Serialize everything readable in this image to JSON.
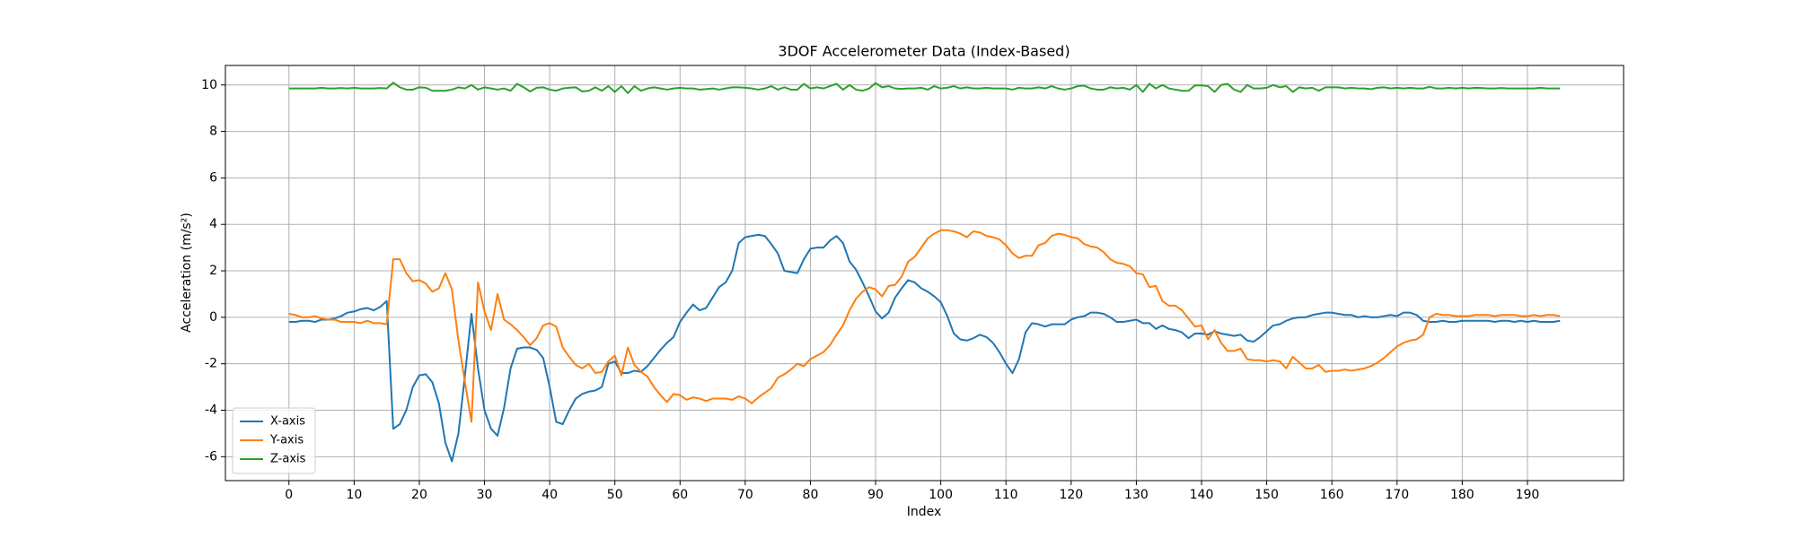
{
  "chart_data": {
    "type": "line",
    "title": "3DOF Accelerometer Data (Index-Based)",
    "x_label": "Index",
    "y_label": "Acceleration (m/s²)",
    "x": [
      0,
      1,
      2,
      3,
      4,
      5,
      6,
      7,
      8,
      9,
      10,
      11,
      12,
      13,
      14,
      15,
      16,
      17,
      18,
      19,
      20,
      21,
      22,
      23,
      24,
      25,
      26,
      27,
      28,
      29,
      30,
      31,
      32,
      33,
      34,
      35,
      36,
      37,
      38,
      39,
      40,
      41,
      42,
      43,
      44,
      45,
      46,
      47,
      48,
      49,
      50,
      51,
      52,
      53,
      54,
      55,
      56,
      57,
      58,
      59,
      60,
      61,
      62,
      63,
      64,
      65,
      66,
      67,
      68,
      69,
      70,
      71,
      72,
      73,
      74,
      75,
      76,
      77,
      78,
      79,
      80,
      81,
      82,
      83,
      84,
      85,
      86,
      87,
      88,
      89,
      90,
      91,
      92,
      93,
      94,
      95,
      96,
      97,
      98,
      99,
      100,
      101,
      102,
      103,
      104,
      105,
      106,
      107,
      108,
      109,
      110,
      111,
      112,
      113,
      114,
      115,
      116,
      117,
      118,
      119,
      120,
      121,
      122,
      123,
      124,
      125,
      126,
      127,
      128,
      129,
      130,
      131,
      132,
      133,
      134,
      135,
      136,
      137,
      138,
      139,
      140,
      141,
      142,
      143,
      144,
      145,
      146,
      147,
      148,
      149,
      150,
      151,
      152,
      153,
      154,
      155,
      156,
      157,
      158,
      159,
      160,
      161,
      162,
      163,
      164,
      165,
      166,
      167,
      168,
      169,
      170,
      171,
      172,
      173,
      174,
      175,
      176,
      177,
      178,
      179,
      180,
      181,
      182,
      183,
      184,
      185,
      186,
      187,
      188,
      189,
      190,
      191,
      192,
      193,
      194,
      195
    ],
    "series": [
      {
        "name": "X-axis",
        "color": "#1f77b4",
        "values": [
          -0.2,
          -0.2,
          -0.15,
          -0.15,
          -0.2,
          -0.1,
          -0.1,
          -0.05,
          0.05,
          0.2,
          0.25,
          0.35,
          0.4,
          0.3,
          0.45,
          0.7,
          -4.8,
          -4.6,
          -4.0,
          -3.0,
          -2.5,
          -2.45,
          -2.8,
          -3.7,
          -5.4,
          -6.2,
          -5.0,
          -2.5,
          0.15,
          -2.2,
          -4.0,
          -4.8,
          -5.1,
          -3.9,
          -2.2,
          -1.35,
          -1.3,
          -1.3,
          -1.4,
          -1.75,
          -3.0,
          -4.5,
          -4.6,
          -4.0,
          -3.5,
          -3.3,
          -3.2,
          -3.15,
          -3.0,
          -2.0,
          -1.9,
          -2.4,
          -2.4,
          -2.3,
          -2.35,
          -2.1,
          -1.75,
          -1.4,
          -1.1,
          -0.85,
          -0.2,
          0.2,
          0.55,
          0.3,
          0.4,
          0.85,
          1.3,
          1.5,
          2.0,
          3.2,
          3.45,
          3.5,
          3.55,
          3.5,
          3.15,
          2.75,
          2.0,
          1.95,
          1.9,
          2.5,
          2.95,
          3.0,
          3.0,
          3.3,
          3.5,
          3.2,
          2.4,
          2.05,
          1.5,
          0.9,
          0.25,
          -0.05,
          0.2,
          0.85,
          1.25,
          1.6,
          1.5,
          1.25,
          1.1,
          0.9,
          0.65,
          0.05,
          -0.7,
          -0.95,
          -1.0,
          -0.9,
          -0.75,
          -0.85,
          -1.1,
          -1.5,
          -2.0,
          -2.4,
          -1.8,
          -0.65,
          -0.25,
          -0.3,
          -0.4,
          -0.3,
          -0.3,
          -0.3,
          -0.1,
          0.0,
          0.05,
          0.2,
          0.2,
          0.15,
          0.0,
          -0.2,
          -0.2,
          -0.15,
          -0.1,
          -0.25,
          -0.25,
          -0.5,
          -0.35,
          -0.5,
          -0.55,
          -0.65,
          -0.9,
          -0.7,
          -0.7,
          -0.75,
          -0.6,
          -0.7,
          -0.75,
          -0.8,
          -0.75,
          -1.0,
          -1.05,
          -0.85,
          -0.6,
          -0.35,
          -0.3,
          -0.15,
          -0.05,
          0.0,
          0.0,
          0.1,
          0.15,
          0.2,
          0.2,
          0.15,
          0.1,
          0.1,
          0.0,
          0.05,
          0.0,
          0.0,
          0.05,
          0.1,
          0.05,
          0.2,
          0.2,
          0.1,
          -0.15,
          -0.2,
          -0.2,
          -0.15,
          -0.2,
          -0.2,
          -0.15,
          -0.15,
          -0.15,
          -0.15,
          -0.15,
          -0.2,
          -0.15,
          -0.15,
          -0.2,
          -0.15,
          -0.2,
          -0.15,
          -0.2,
          -0.2,
          -0.2,
          -0.15
        ]
      },
      {
        "name": "Y-axis",
        "color": "#ff7f0e",
        "values": [
          0.15,
          0.1,
          0.0,
          0.0,
          0.05,
          -0.05,
          -0.1,
          -0.1,
          -0.2,
          -0.2,
          -0.2,
          -0.25,
          -0.15,
          -0.25,
          -0.25,
          -0.3,
          2.5,
          2.5,
          1.9,
          1.55,
          1.6,
          1.45,
          1.1,
          1.25,
          1.9,
          1.2,
          -1.0,
          -2.8,
          -4.5,
          1.5,
          0.25,
          -0.55,
          1.0,
          -0.1,
          -0.3,
          -0.55,
          -0.85,
          -1.2,
          -0.9,
          -0.35,
          -0.25,
          -0.4,
          -1.3,
          -1.7,
          -2.05,
          -2.2,
          -2.0,
          -2.4,
          -2.35,
          -1.9,
          -1.65,
          -2.5,
          -1.3,
          -2.05,
          -2.35,
          -2.55,
          -3.0,
          -3.35,
          -3.65,
          -3.3,
          -3.35,
          -3.55,
          -3.45,
          -3.5,
          -3.6,
          -3.5,
          -3.5,
          -3.5,
          -3.55,
          -3.4,
          -3.5,
          -3.7,
          -3.45,
          -3.25,
          -3.05,
          -2.6,
          -2.45,
          -2.25,
          -2.0,
          -2.1,
          -1.8,
          -1.65,
          -1.5,
          -1.2,
          -0.75,
          -0.35,
          0.3,
          0.8,
          1.1,
          1.3,
          1.2,
          0.9,
          1.35,
          1.4,
          1.75,
          2.4,
          2.6,
          3.0,
          3.4,
          3.6,
          3.75,
          3.75,
          3.7,
          3.6,
          3.45,
          3.7,
          3.65,
          3.5,
          3.45,
          3.35,
          3.1,
          2.75,
          2.55,
          2.65,
          2.65,
          3.1,
          3.2,
          3.5,
          3.6,
          3.55,
          3.45,
          3.4,
          3.15,
          3.05,
          3.0,
          2.8,
          2.5,
          2.35,
          2.3,
          2.2,
          1.9,
          1.85,
          1.3,
          1.35,
          0.7,
          0.5,
          0.5,
          0.3,
          -0.05,
          -0.4,
          -0.35,
          -0.95,
          -0.55,
          -1.1,
          -1.45,
          -1.45,
          -1.35,
          -1.8,
          -1.85,
          -1.85,
          -1.9,
          -1.85,
          -1.9,
          -2.2,
          -1.7,
          -1.95,
          -2.2,
          -2.2,
          -2.05,
          -2.35,
          -2.3,
          -2.3,
          -2.25,
          -2.3,
          -2.25,
          -2.2,
          -2.1,
          -1.95,
          -1.75,
          -1.5,
          -1.25,
          -1.1,
          -1.0,
          -0.95,
          -0.75,
          0.0,
          0.15,
          0.1,
          0.1,
          0.05,
          0.05,
          0.05,
          0.1,
          0.1,
          0.1,
          0.05,
          0.1,
          0.1,
          0.1,
          0.05,
          0.05,
          0.1,
          0.05,
          0.1,
          0.1,
          0.05
        ]
      },
      {
        "name": "Z-axis",
        "color": "#2ca02c",
        "values": [
          9.85,
          9.85,
          9.85,
          9.85,
          9.85,
          9.88,
          9.85,
          9.85,
          9.87,
          9.85,
          9.88,
          9.85,
          9.85,
          9.85,
          9.87,
          9.85,
          10.1,
          9.9,
          9.8,
          9.8,
          9.9,
          9.88,
          9.75,
          9.75,
          9.75,
          9.8,
          9.9,
          9.85,
          10.0,
          9.8,
          9.9,
          9.85,
          9.8,
          9.85,
          9.75,
          10.05,
          9.9,
          9.72,
          9.88,
          9.9,
          9.8,
          9.75,
          9.85,
          9.88,
          9.9,
          9.72,
          9.75,
          9.9,
          9.75,
          9.95,
          9.7,
          9.95,
          9.65,
          9.95,
          9.75,
          9.85,
          9.9,
          9.85,
          9.8,
          9.85,
          9.88,
          9.85,
          9.85,
          9.8,
          9.82,
          9.85,
          9.8,
          9.85,
          9.9,
          9.9,
          9.88,
          9.85,
          9.8,
          9.85,
          9.95,
          9.8,
          9.9,
          9.8,
          9.8,
          10.05,
          9.85,
          9.9,
          9.85,
          9.95,
          10.05,
          9.8,
          10.0,
          9.8,
          9.75,
          9.85,
          10.08,
          9.9,
          9.95,
          9.85,
          9.83,
          9.85,
          9.85,
          9.88,
          9.8,
          9.95,
          9.85,
          9.88,
          9.95,
          9.85,
          9.9,
          9.85,
          9.85,
          9.88,
          9.85,
          9.85,
          9.85,
          9.8,
          9.88,
          9.85,
          9.85,
          9.9,
          9.85,
          9.95,
          9.85,
          9.8,
          9.85,
          9.95,
          9.97,
          9.85,
          9.8,
          9.8,
          9.9,
          9.85,
          9.88,
          9.8,
          10.0,
          9.7,
          10.05,
          9.85,
          10.0,
          9.85,
          9.8,
          9.75,
          9.75,
          9.98,
          9.98,
          9.95,
          9.7,
          10.0,
          10.05,
          9.8,
          9.7,
          10.0,
          9.85,
          9.85,
          9.88,
          10.0,
          9.9,
          9.95,
          9.7,
          9.9,
          9.85,
          9.88,
          9.75,
          9.9,
          9.9,
          9.9,
          9.85,
          9.88,
          9.85,
          9.85,
          9.82,
          9.88,
          9.9,
          9.85,
          9.88,
          9.85,
          9.88,
          9.85,
          9.85,
          9.92,
          9.85,
          9.85,
          9.88,
          9.85,
          9.88,
          9.85,
          9.88,
          9.87,
          9.85,
          9.85,
          9.87,
          9.85,
          9.85,
          9.85,
          9.85,
          9.85,
          9.88,
          9.85,
          9.85,
          9.85
        ]
      }
    ],
    "xlim": [
      -9.75,
      204.75
    ],
    "ylim": [
      -7.03,
      10.84
    ],
    "xticks": [
      0,
      10,
      20,
      30,
      40,
      50,
      60,
      70,
      80,
      90,
      100,
      110,
      120,
      130,
      140,
      150,
      160,
      170,
      180,
      190
    ],
    "yticks": [
      -6,
      -4,
      -2,
      0,
      2,
      4,
      6,
      8,
      10
    ],
    "grid": true,
    "legend": "lower left"
  }
}
